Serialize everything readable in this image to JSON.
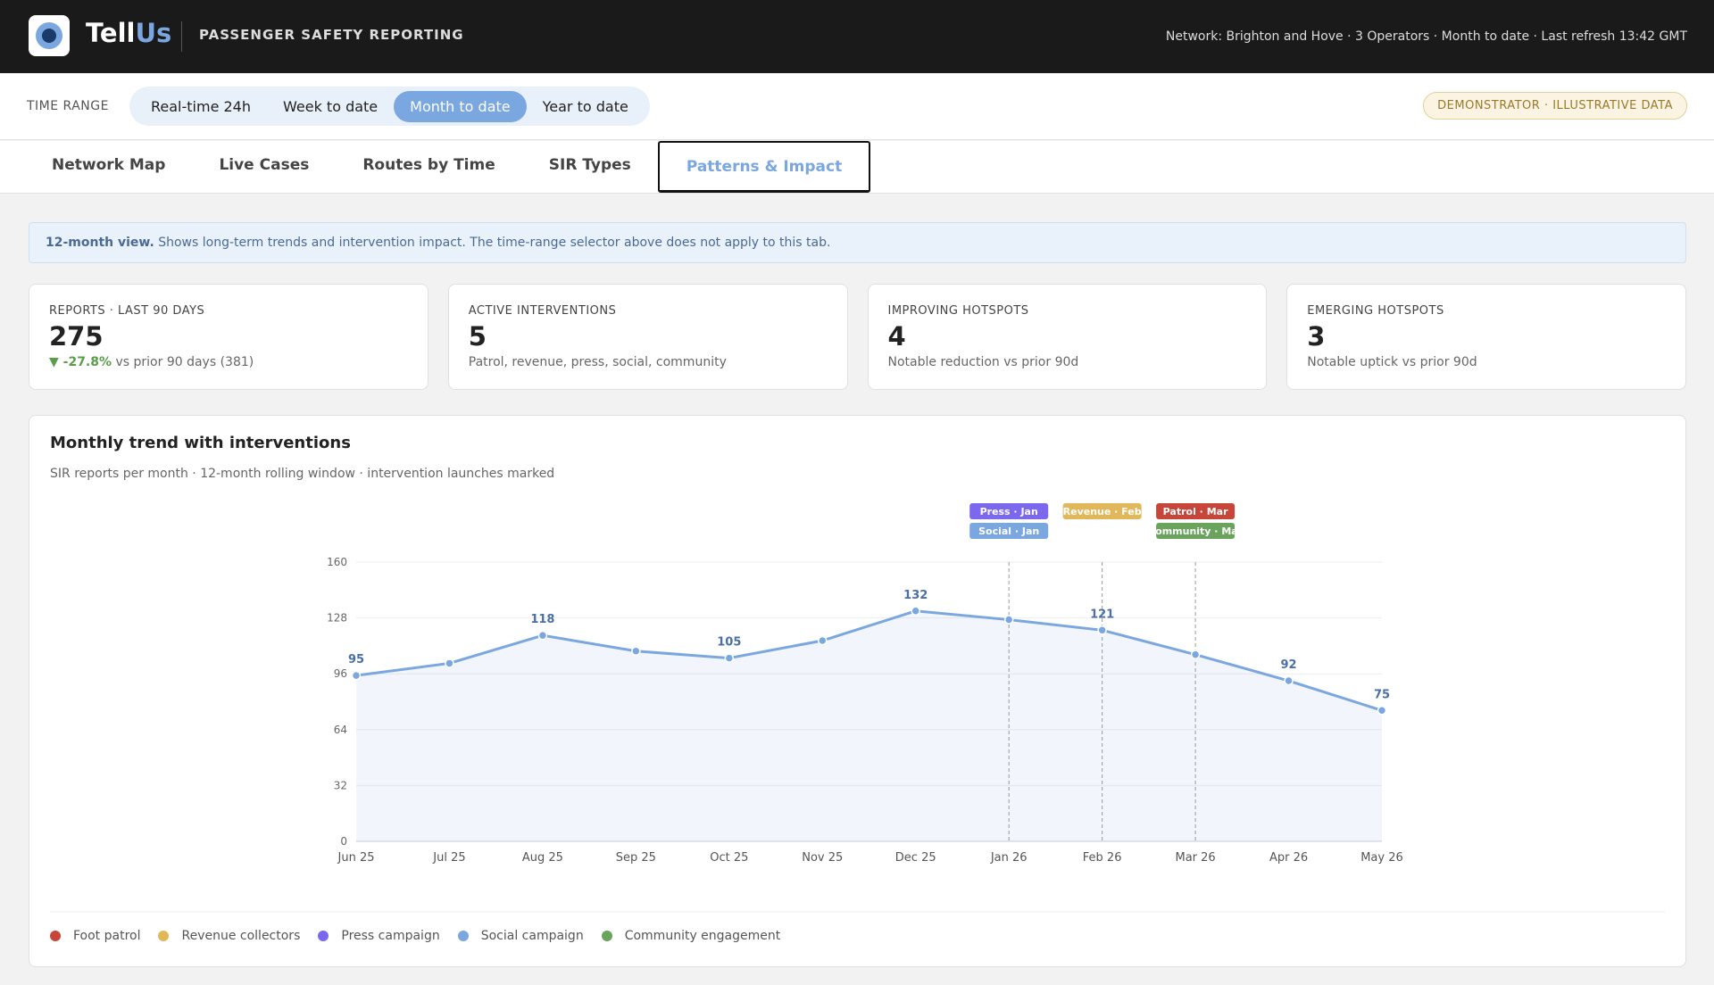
{
  "header": {
    "brand": [
      "Tell",
      "Us"
    ],
    "subtitle": "PASSENGER SAFETY REPORTING",
    "status": "Network: Brighton and Hove · 3 Operators · Month to date · Last refresh 13:42 GMT"
  },
  "time_range": {
    "label": "TIME RANGE",
    "options": [
      "Real-time 24h",
      "Week to date",
      "Month to date",
      "Year to date"
    ],
    "active": 2,
    "badge": "DEMONSTRATOR · ILLUSTRATIVE DATA"
  },
  "tabs": {
    "items": [
      "Network Map",
      "Live Cases",
      "Routes by Time",
      "SIR Types",
      "Patterns & Impact"
    ],
    "active": 4
  },
  "notice": {
    "lead": "12-month view.",
    "text": "Shows long-term trends and intervention impact. The time-range selector above does not apply to this tab."
  },
  "kpis": [
    {
      "label": "REPORTS · LAST 90 DAYS",
      "value": 275,
      "delta": "-27.8%",
      "note": "vs prior 90 days (381)"
    },
    {
      "label": "ACTIVE INTERVENTIONS",
      "value": 5,
      "note": "Patrol, revenue, press, social, community"
    },
    {
      "label": "IMPROVING HOTSPOTS",
      "value": 4,
      "note": "Notable reduction vs prior 90d"
    },
    {
      "label": "EMERGING HOTSPOTS",
      "value": 3,
      "note": "Notable uptick vs prior 90d"
    }
  ],
  "chart_data": {
    "type": "line",
    "title": "Monthly trend with interventions",
    "subtitle": "SIR reports per month · 12-month rolling window · intervention launches marked",
    "categories": [
      "Jun 25",
      "Jul 25",
      "Aug 25",
      "Sep 25",
      "Oct 25",
      "Nov 25",
      "Dec 25",
      "Jan 26",
      "Feb 26",
      "Mar 26",
      "Apr 26",
      "May 26"
    ],
    "values": [
      95,
      102,
      118,
      109,
      105,
      115,
      132,
      127,
      121,
      107,
      92,
      75
    ],
    "value_labels": [
      "95",
      null,
      "118",
      null,
      "105",
      null,
      "132",
      null,
      "121",
      null,
      "92",
      "75"
    ],
    "color": "#7ba7e0",
    "ylim": [
      0,
      160
    ],
    "yticks": [
      0,
      32,
      64,
      96,
      128,
      160
    ],
    "grid": true,
    "legend": [
      {
        "name": "Foot patrol",
        "color": "#c8453a"
      },
      {
        "name": "Revenue collectors",
        "color": "#e2b75a"
      },
      {
        "name": "Press campaign",
        "color": "#7b68ee"
      },
      {
        "name": "Social campaign",
        "color": "#7ba7e0"
      },
      {
        "name": "Community engagement",
        "color": "#6aa35c"
      }
    ],
    "interventions": [
      {
        "label": "Press · Jan",
        "x": "Jan 26",
        "kind": 2
      },
      {
        "label": "Social · Jan",
        "x": "Jan 26",
        "kind": 3
      },
      {
        "label": "Revenue · Feb",
        "x": "Feb 26",
        "kind": 1
      },
      {
        "label": "Patrol · Mar",
        "x": "Mar 26",
        "kind": 0
      },
      {
        "label": "Community · Mar",
        "x": "Mar 26",
        "kind": 4
      }
    ]
  }
}
